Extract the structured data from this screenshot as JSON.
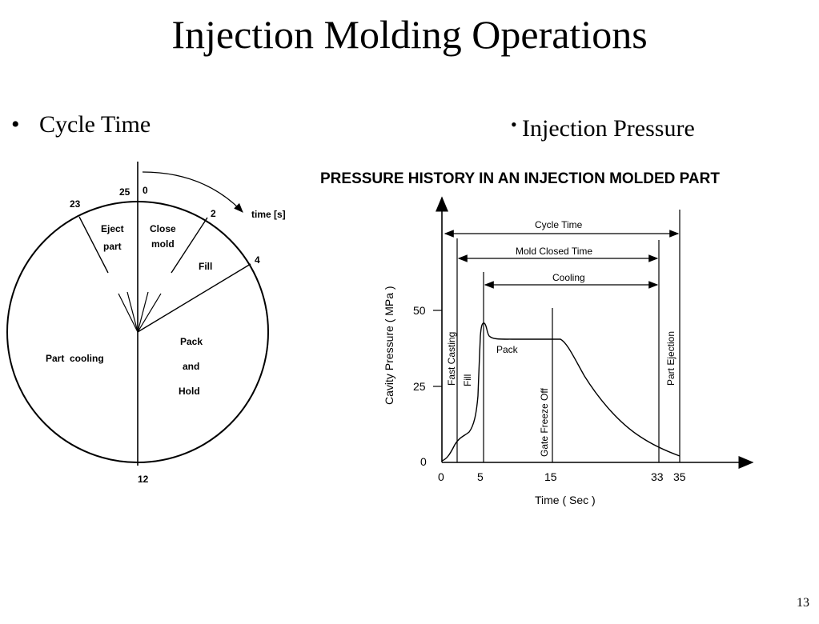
{
  "slide": {
    "title": "Injection Molding Operations",
    "page_number": "13"
  },
  "bullets": {
    "left": {
      "marker": "•",
      "text": "Cycle Time"
    },
    "right": {
      "marker": "•",
      "text": "Injection Pressure"
    }
  },
  "cycle_diagram": {
    "time_unit_label": "time [s]",
    "time_labels": {
      "t0": "0",
      "t2": "2",
      "t4": "4",
      "t12": "12",
      "t23": "23",
      "t25": "25"
    },
    "segments": {
      "eject_line1": "Eject",
      "eject_line2": "part",
      "close_line1": "Close",
      "close_line2": "mold",
      "fill": "Fill",
      "pack_line1": "Pack",
      "pack_line2": "and",
      "pack_line3": "Hold",
      "cooling": "Part  cooling"
    }
  },
  "pressure_chart": {
    "title": "PRESSURE HISTORY IN AN INJECTION MOLDED PART",
    "y_axis_label": "Cavity Pressure ( MPa )",
    "x_axis_label": "Time ( Sec )",
    "y_ticks": [
      "0",
      "25",
      "50"
    ],
    "x_ticks": [
      "0",
      "5",
      "15",
      "33",
      "35"
    ],
    "spans": {
      "cycle_time": "Cycle Time",
      "mold_closed_time": "Mold Closed Time",
      "cooling": "Cooling"
    },
    "markers": {
      "fast_casting": "Fast Casting",
      "fill": "Fill",
      "gate_freeze_off": "Gate Freeze Off",
      "part_ejection": "Part Ejection"
    },
    "curve_label": "Pack"
  }
}
